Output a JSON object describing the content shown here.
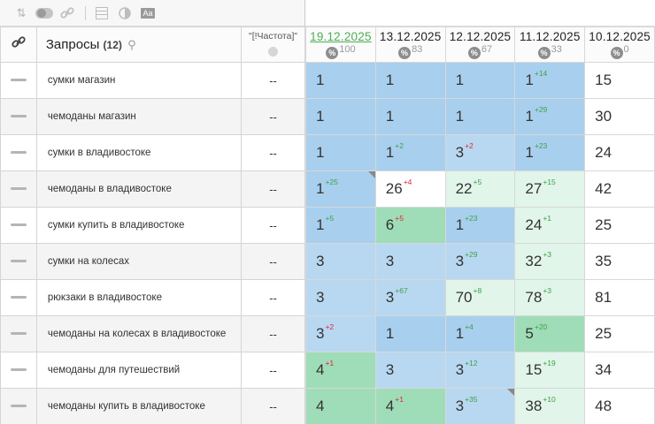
{
  "toolbar": {
    "icons": [
      "sort-icon",
      "toggle-icon",
      "link-icon",
      "table-icon",
      "contrast-icon",
      "font-size-icon"
    ],
    "font_icon_label": "Aa"
  },
  "header": {
    "title": "Запросы",
    "count": "(12)",
    "frequency_label": "\"[!Частота]\"",
    "dates": [
      {
        "label": "19.12.2025",
        "value": "100",
        "active": true
      },
      {
        "label": "13.12.2025",
        "value": "83",
        "active": false
      },
      {
        "label": "12.12.2025",
        "value": "67",
        "active": false
      },
      {
        "label": "11.12.2025",
        "value": "33",
        "active": false
      },
      {
        "label": "10.12.2025",
        "value": "0",
        "active": false
      }
    ],
    "pct_symbol": "%"
  },
  "rows": [
    {
      "query": "сумки магазин",
      "freq": "--",
      "cells": [
        {
          "v": "1",
          "d": "",
          "bg": "b-blue"
        },
        {
          "v": "1",
          "d": "",
          "bg": "b-blue"
        },
        {
          "v": "1",
          "d": "",
          "bg": "b-blue"
        },
        {
          "v": "1",
          "d": "+14",
          "bg": "b-blue"
        },
        {
          "v": "15",
          "d": "",
          "bg": "b-white"
        }
      ]
    },
    {
      "query": "чемоданы магазин",
      "freq": "--",
      "cells": [
        {
          "v": "1",
          "d": "",
          "bg": "b-blue"
        },
        {
          "v": "1",
          "d": "",
          "bg": "b-blue"
        },
        {
          "v": "1",
          "d": "",
          "bg": "b-blue"
        },
        {
          "v": "1",
          "d": "+29",
          "bg": "b-blue"
        },
        {
          "v": "30",
          "d": "",
          "bg": "b-white"
        }
      ]
    },
    {
      "query": "сумки в владивостоке",
      "freq": "--",
      "cells": [
        {
          "v": "1",
          "d": "",
          "bg": "b-blue"
        },
        {
          "v": "1",
          "d": "+2",
          "bg": "b-blue"
        },
        {
          "v": "3",
          "d": "+2",
          "dir": "down",
          "bg": "b-lblue"
        },
        {
          "v": "1",
          "d": "+23",
          "bg": "b-blue"
        },
        {
          "v": "24",
          "d": "",
          "bg": "b-white"
        }
      ]
    },
    {
      "query": "чемоданы в владивостоке",
      "freq": "--",
      "cells": [
        {
          "v": "1",
          "d": "+25",
          "bg": "b-blue",
          "corner": true
        },
        {
          "v": "26",
          "d": "+4",
          "dir": "down",
          "bg": "b-white"
        },
        {
          "v": "22",
          "d": "+5",
          "bg": "b-lgreen"
        },
        {
          "v": "27",
          "d": "+15",
          "bg": "b-lgreen"
        },
        {
          "v": "42",
          "d": "",
          "bg": "b-white"
        }
      ]
    },
    {
      "query": "сумки купить в владивостоке",
      "freq": "--",
      "cells": [
        {
          "v": "1",
          "d": "+5",
          "bg": "b-blue"
        },
        {
          "v": "6",
          "d": "+5",
          "dir": "down",
          "bg": "b-green"
        },
        {
          "v": "1",
          "d": "+23",
          "bg": "b-blue"
        },
        {
          "v": "24",
          "d": "+1",
          "bg": "b-lgreen"
        },
        {
          "v": "25",
          "d": "",
          "bg": "b-white"
        }
      ]
    },
    {
      "query": "сумки на колесах",
      "freq": "--",
      "cells": [
        {
          "v": "3",
          "d": "",
          "bg": "b-lblue"
        },
        {
          "v": "3",
          "d": "",
          "bg": "b-lblue"
        },
        {
          "v": "3",
          "d": "+29",
          "bg": "b-lblue"
        },
        {
          "v": "32",
          "d": "+3",
          "bg": "b-lgreen"
        },
        {
          "v": "35",
          "d": "",
          "bg": "b-white"
        }
      ]
    },
    {
      "query": "рюкзаки в владивостоке",
      "freq": "--",
      "cells": [
        {
          "v": "3",
          "d": "",
          "bg": "b-lblue"
        },
        {
          "v": "3",
          "d": "+67",
          "bg": "b-lblue"
        },
        {
          "v": "70",
          "d": "+8",
          "bg": "b-lgreen"
        },
        {
          "v": "78",
          "d": "+3",
          "bg": "b-lgreen"
        },
        {
          "v": "81",
          "d": "",
          "bg": "b-white"
        }
      ]
    },
    {
      "query": "чемоданы на колесах в владивостоке",
      "freq": "--",
      "cells": [
        {
          "v": "3",
          "d": "+2",
          "dir": "down",
          "bg": "b-lblue"
        },
        {
          "v": "1",
          "d": "",
          "bg": "b-blue"
        },
        {
          "v": "1",
          "d": "+4",
          "bg": "b-blue"
        },
        {
          "v": "5",
          "d": "+20",
          "bg": "b-green"
        },
        {
          "v": "25",
          "d": "",
          "bg": "b-white"
        }
      ]
    },
    {
      "query": "чемоданы для путешествий",
      "freq": "--",
      "cells": [
        {
          "v": "4",
          "d": "+1",
          "dir": "down",
          "bg": "b-green"
        },
        {
          "v": "3",
          "d": "",
          "bg": "b-lblue"
        },
        {
          "v": "3",
          "d": "+12",
          "bg": "b-lblue"
        },
        {
          "v": "15",
          "d": "+19",
          "bg": "b-lgreen"
        },
        {
          "v": "34",
          "d": "",
          "bg": "b-white"
        }
      ]
    },
    {
      "query": "чемоданы купить в владивостоке",
      "freq": "--",
      "cells": [
        {
          "v": "4",
          "d": "",
          "bg": "b-green"
        },
        {
          "v": "4",
          "d": "+1",
          "dir": "down",
          "bg": "b-green"
        },
        {
          "v": "3",
          "d": "+35",
          "bg": "b-lblue",
          "corner": true
        },
        {
          "v": "38",
          "d": "+10",
          "bg": "b-lgreen"
        },
        {
          "v": "48",
          "d": "",
          "bg": "b-white"
        }
      ]
    }
  ]
}
